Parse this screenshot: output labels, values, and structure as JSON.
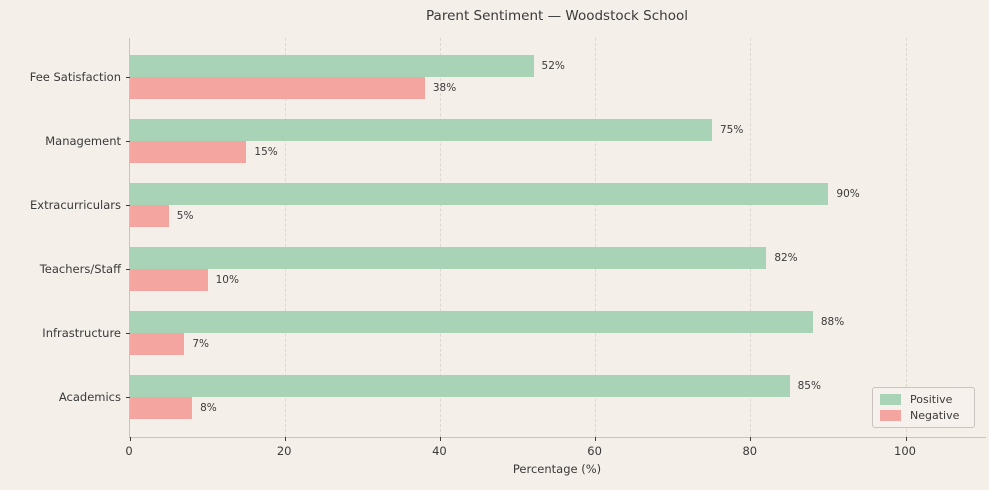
{
  "chart_data": {
    "type": "bar",
    "orientation": "horizontal",
    "title": "Parent Sentiment — Woodstock School",
    "xlabel": "Percentage (%)",
    "categories": [
      "Fee Satisfaction",
      "Management",
      "Extracurriculars",
      "Teachers/Staff",
      "Infrastructure",
      "Academics"
    ],
    "series": [
      {
        "name": "Positive",
        "color": "#a8d3b6",
        "values": [
          52,
          75,
          90,
          82,
          88,
          85
        ]
      },
      {
        "name": "Negative",
        "color": "#f5a5a0",
        "values": [
          38,
          15,
          5,
          10,
          7,
          8
        ]
      }
    ],
    "value_labels": {
      "Positive": [
        "52%",
        "75%",
        "90%",
        "82%",
        "88%",
        "85%"
      ],
      "Negative": [
        "38%",
        "15%",
        "5%",
        "10%",
        "7%",
        "8%"
      ]
    },
    "xlim": [
      0,
      110.3
    ],
    "xticks": [
      0,
      20,
      40,
      60,
      80,
      100
    ],
    "xtick_labels": [
      "0",
      "20",
      "40",
      "60",
      "80",
      "100"
    ],
    "grid": "vertical-dashed",
    "legend": {
      "position": "lower-right",
      "entries": [
        "Positive",
        "Negative"
      ]
    },
    "colors": {
      "background": "#f4efe9",
      "positive": "#a8d3b6",
      "negative": "#f5a5a0",
      "text": "#3a3a3a",
      "spine": "#c8c3bd",
      "gridline": "#ddd7d0"
    }
  }
}
